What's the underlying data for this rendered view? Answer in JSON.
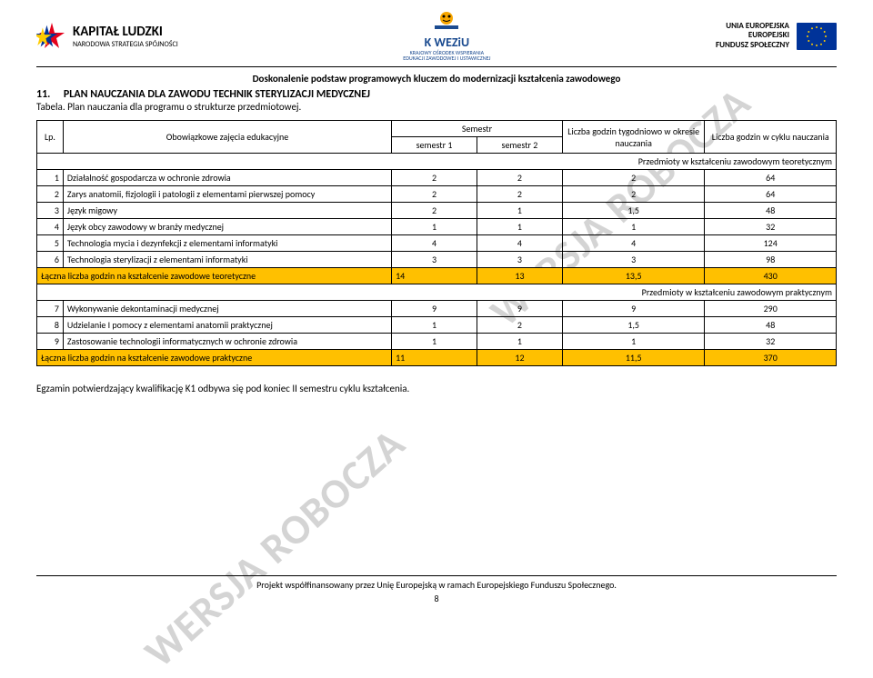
{
  "logos": {
    "kl_big": "KAPITAŁ LUDZKI",
    "kl_small": "NARODOWA STRATEGIA SPÓJNOŚCI",
    "kw_title": "K   WEZiU",
    "kw_sub1": "KRAJOWY OŚRODEK WSPIERANIA",
    "kw_sub2": "EDUKACJI ZAWODOWEJ I USTAWICZNEJ",
    "eu_line1": "UNIA EUROPEJSKA",
    "eu_line2": "EUROPEJSKI",
    "eu_line3": "FUNDUSZ SPOŁECZNY"
  },
  "subtitle": "Doskonalenie podstaw programowych kluczem do modernizacji kształcenia zawodowego",
  "section_num": "11.",
  "section_title": "PLAN NAUCZANIA DLA ZAWODU TECHNIK STERYLIZACJI MEDYCZNEJ",
  "tabela_caption": "Tabela. Plan nauczania dla programu o strukturze przedmiotowej.",
  "watermark": "WERSJA ROBOCZA",
  "headers": {
    "lp": "Lp.",
    "subject": "Obowiązkowe zajęcia edukacyjne",
    "semestr": "Semestr",
    "sem1": "semestr 1",
    "sem2": "semestr 2",
    "tyg": "Liczba godzin tygodniowo w okresie nauczania",
    "cykl": "Liczba godzin w cyklu nauczania"
  },
  "section_a": "Przedmioty w kształceniu zawodowym teoretycznym",
  "rows_a": [
    {
      "n": "1",
      "name": "Działalność gospodarcza w ochronie zdrowia",
      "s1": "2",
      "s2": "2",
      "tyg": "2",
      "cykl": "64"
    },
    {
      "n": "2",
      "name": "Zarys anatomii, fizjologii i patologii z  elementami pierwszej pomocy",
      "s1": "2",
      "s2": "2",
      "tyg": "2",
      "cykl": "64"
    },
    {
      "n": "3",
      "name": "Język migowy",
      "s1": "2",
      "s2": "1",
      "tyg": "1,5",
      "cykl": "48"
    },
    {
      "n": "4",
      "name": "Język obcy zawodowy w branży medycznej",
      "s1": "1",
      "s2": "1",
      "tyg": "1",
      "cykl": "32"
    },
    {
      "n": "5",
      "name": "Technologia mycia i dezynfekcji z elementami informatyki",
      "s1": "4",
      "s2": "4",
      "tyg": "4",
      "cykl": "124"
    },
    {
      "n": "6",
      "name": "Technologia sterylizacji z elementami informatyki",
      "s1": "3",
      "s2": "3",
      "tyg": "3",
      "cykl": "98"
    }
  ],
  "sum_a": {
    "label": "Łączna liczba godzin na kształcenie zawodowe teoretyczne",
    "s1": "14",
    "s2": "13",
    "tyg": "13,5",
    "cykl": "430"
  },
  "section_b": "Przedmioty w kształceniu zawodowym praktycznym",
  "rows_b": [
    {
      "n": "7",
      "name": "Wykonywanie dekontaminacji medycznej",
      "s1": "9",
      "s2": "9",
      "tyg": "9",
      "cykl": "290"
    },
    {
      "n": "8",
      "name": "Udzielanie I pomocy z elementami anatomii praktycznej",
      "s1": "1",
      "s2": "2",
      "tyg": "1,5",
      "cykl": "48"
    },
    {
      "n": "9",
      "name": "Zastosowanie technologii informatycznych w ochronie zdrowia",
      "s1": "1",
      "s2": "1",
      "tyg": "1",
      "cykl": "32"
    }
  ],
  "sum_b": {
    "label": "Łączna liczba godzin na kształcenie zawodowe praktyczne",
    "s1": "11",
    "s2": "12",
    "tyg": "11,5",
    "cykl": "370"
  },
  "note": "Egzamin potwierdzający kwalifikację K1 odbywa się pod koniec II semestru cyklu kształcenia.",
  "footer": "Projekt współfinansowany przez Unię Europejską w ramach Europejskiego Funduszu Społecznego.",
  "page_num": "8",
  "colors": {
    "sum_bg": "#ffc000",
    "border": "#000000",
    "watermark": "#d4d4d4",
    "eu_blue": "#003399",
    "eu_gold": "#ffcc00"
  },
  "col_widths": {
    "lp": 24,
    "subject": 300,
    "sem": 78,
    "tyg": 130,
    "cykl": 120
  }
}
